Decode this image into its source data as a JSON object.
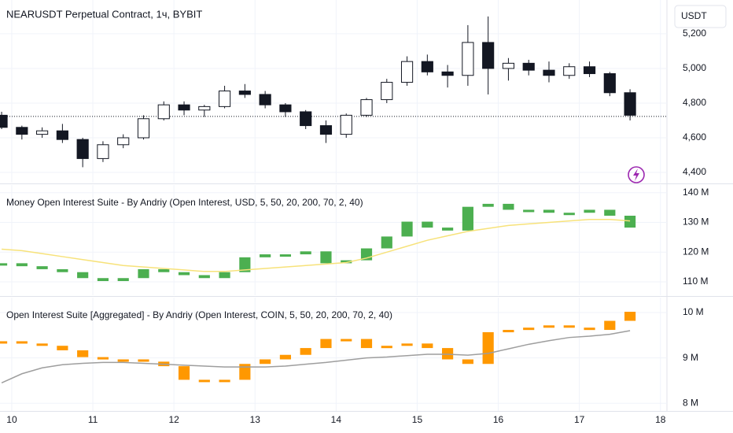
{
  "chart_data": [
    {
      "type": "candlestick",
      "title": "NEARUSDT Perpetual Contract, 1ч, BYBIT",
      "unit": "USDT",
      "up_color": "#ffffff",
      "down_color": "#131722",
      "last_price": 4723,
      "x": [
        9.875,
        10.125,
        10.375,
        10.625,
        10.875,
        11.125,
        11.375,
        11.625,
        11.875,
        12.125,
        12.375,
        12.625,
        12.875,
        13.125,
        13.375,
        13.625,
        13.875,
        14.125,
        14.375,
        14.625,
        14.875,
        15.125,
        15.375,
        15.625,
        15.875,
        16.125,
        16.375,
        16.625,
        16.875,
        17.125,
        17.375,
        17.625
      ],
      "open": [
        4730,
        4660,
        4620,
        4640,
        4590,
        4480,
        4560,
        4600,
        4710,
        4790,
        4760,
        4780,
        4870,
        4850,
        4790,
        4750,
        4670,
        4620,
        4730,
        4820,
        4920,
        5040,
        4980,
        4960,
        5150,
        5000,
        5030,
        4990,
        4960,
        5010,
        4970,
        4860
      ],
      "high": [
        4750,
        4670,
        4660,
        4680,
        4600,
        4580,
        4620,
        4730,
        4810,
        4810,
        4790,
        4900,
        4910,
        4870,
        4800,
        4760,
        4700,
        4740,
        4830,
        4940,
        5070,
        5080,
        5020,
        5250,
        5300,
        5060,
        5050,
        5040,
        5030,
        5040,
        4980,
        4880
      ],
      "low": [
        4650,
        4590,
        4600,
        4570,
        4430,
        4460,
        4540,
        4590,
        4700,
        4730,
        4720,
        4770,
        4830,
        4770,
        4720,
        4650,
        4570,
        4600,
        4720,
        4800,
        4900,
        4960,
        4890,
        4900,
        4850,
        4930,
        4960,
        4920,
        4940,
        4950,
        4840,
        4700
      ],
      "close": [
        4660,
        4620,
        4640,
        4590,
        4480,
        4560,
        4600,
        4710,
        4790,
        4760,
        4780,
        4870,
        4850,
        4790,
        4750,
        4670,
        4620,
        4730,
        4820,
        4920,
        5040,
        4980,
        4960,
        5150,
        5000,
        5030,
        4990,
        4960,
        5010,
        4970,
        4860,
        4730
      ],
      "xlim": [
        9.855,
        18.08
      ],
      "ylim": [
        4341,
        5395
      ],
      "yticks": [
        {
          "value": 4400,
          "label": "4,400"
        },
        {
          "value": 4600,
          "label": "4,600"
        },
        {
          "value": 4800,
          "label": "4,800"
        },
        {
          "value": 5000,
          "label": "5,000"
        },
        {
          "value": 5200,
          "label": "5,200"
        }
      ],
      "grid": true
    },
    {
      "type": "step",
      "title": "Money Open Interest Suite - By Andriy (Open Interest, USD, 5, 50, 20, 200, 70, 2, 40)",
      "x": [
        9.875,
        10.125,
        10.375,
        10.625,
        10.875,
        11.125,
        11.375,
        11.625,
        11.875,
        12.125,
        12.375,
        12.625,
        12.875,
        13.125,
        13.375,
        13.625,
        13.875,
        14.125,
        14.375,
        14.625,
        14.875,
        15.125,
        15.375,
        15.625,
        15.875,
        16.125,
        16.375,
        16.625,
        16.875,
        17.125,
        17.375,
        17.625
      ],
      "series": [
        {
          "color": "#4caf50",
          "values": [
            116,
            115,
            114,
            113,
            111,
            110,
            111,
            114,
            113,
            112,
            111,
            113,
            118,
            119,
            119,
            120,
            116,
            117,
            121,
            125,
            130,
            128,
            127,
            135,
            136,
            134,
            134,
            133,
            133,
            134,
            132,
            128
          ]
        },
        {
          "color": "#f7e27a",
          "style": "line",
          "values": [
            121,
            120.5,
            119.5,
            118.5,
            117.5,
            116.5,
            115.5,
            115,
            114.5,
            114,
            113.5,
            113.5,
            114,
            114.5,
            115,
            115.5,
            116,
            116.5,
            118,
            120,
            122,
            124,
            125.5,
            127,
            128,
            129,
            129.5,
            130,
            130.5,
            131,
            131,
            130.5
          ]
        }
      ],
      "xlim": [
        9.855,
        18.08
      ],
      "ylim": [
        105.5,
        142.6
      ],
      "yticks": [
        {
          "value": 110,
          "label": "110 M"
        },
        {
          "value": 120,
          "label": "120 M"
        },
        {
          "value": 130,
          "label": "130 M"
        },
        {
          "value": 140,
          "label": "140 M"
        }
      ],
      "grid": true
    },
    {
      "type": "step",
      "title": "Open Interest Suite [Aggregated] - By Andriy (Open Interest, COIN, 5, 50, 20, 200, 70, 2, 40)",
      "x": [
        9.875,
        10.125,
        10.375,
        10.625,
        10.875,
        11.125,
        11.375,
        11.625,
        11.875,
        12.125,
        12.375,
        12.625,
        12.875,
        13.125,
        13.375,
        13.625,
        13.875,
        14.125,
        14.375,
        14.625,
        14.875,
        15.125,
        15.375,
        15.625,
        15.875,
        16.125,
        16.375,
        16.625,
        16.875,
        17.125,
        17.375,
        17.625
      ],
      "series": [
        {
          "color": "#ff9800",
          "values": [
            9.35,
            9.3,
            9.25,
            9.15,
            9.0,
            8.95,
            8.95,
            8.9,
            8.8,
            8.5,
            8.5,
            8.5,
            8.85,
            8.95,
            9.05,
            9.2,
            9.4,
            9.4,
            9.2,
            9.25,
            9.3,
            9.2,
            8.95,
            8.85,
            9.55,
            9.6,
            9.65,
            9.7,
            9.65,
            9.6,
            9.8,
            10.0
          ]
        },
        {
          "color": "#9e9e9e",
          "style": "line",
          "values": [
            8.45,
            8.65,
            8.78,
            8.85,
            8.88,
            8.9,
            8.9,
            8.88,
            8.86,
            8.84,
            8.82,
            8.8,
            8.8,
            8.8,
            8.82,
            8.86,
            8.9,
            8.95,
            9.0,
            9.02,
            9.05,
            9.08,
            9.08,
            9.06,
            9.1,
            9.2,
            9.3,
            9.38,
            9.45,
            9.48,
            9.52,
            9.6
          ]
        }
      ],
      "xlim": [
        9.855,
        18.08
      ],
      "ylim": [
        7.83,
        10.33
      ],
      "yticks": [
        {
          "value": 8,
          "label": "8 M"
        },
        {
          "value": 9,
          "label": "9 M"
        },
        {
          "value": 10,
          "label": "10 M"
        }
      ],
      "xticks": [
        10,
        11,
        12,
        13,
        14,
        15,
        16,
        17,
        18
      ],
      "grid": true
    }
  ]
}
